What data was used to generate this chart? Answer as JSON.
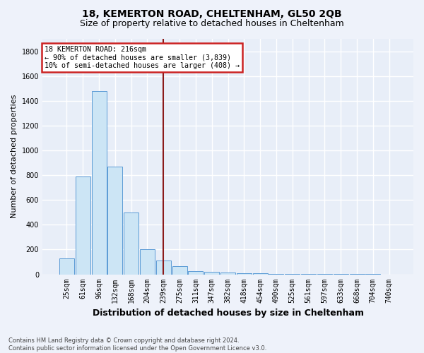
{
  "title": "18, KEMERTON ROAD, CHELTENHAM, GL50 2QB",
  "subtitle": "Size of property relative to detached houses in Cheltenham",
  "xlabel": "Distribution of detached houses by size in Cheltenham",
  "ylabel": "Number of detached properties",
  "bar_labels": [
    "25sqm",
    "61sqm",
    "96sqm",
    "132sqm",
    "168sqm",
    "204sqm",
    "239sqm",
    "275sqm",
    "311sqm",
    "347sqm",
    "382sqm",
    "418sqm",
    "454sqm",
    "490sqm",
    "525sqm",
    "561sqm",
    "597sqm",
    "633sqm",
    "668sqm",
    "704sqm",
    "740sqm"
  ],
  "bar_values": [
    130,
    790,
    1480,
    870,
    500,
    205,
    110,
    65,
    25,
    20,
    15,
    10,
    8,
    5,
    4,
    3,
    2,
    2,
    1,
    1,
    0
  ],
  "bar_color": "#cce5f5",
  "bar_edge_color": "#5b9bd5",
  "vline_x": 6.0,
  "vline_color": "#8b1a1a",
  "annotation_text": "18 KEMERTON ROAD: 216sqm\n← 90% of detached houses are smaller (3,839)\n10% of semi-detached houses are larger (408) →",
  "annotation_box_color": "#ffffff",
  "annotation_box_edge": "#cc2222",
  "footnote": "Contains HM Land Registry data © Crown copyright and database right 2024.\nContains public sector information licensed under the Open Government Licence v3.0.",
  "ylim": [
    0,
    1900
  ],
  "background_color": "#eef2fa",
  "plot_background": "#e8eef8",
  "grid_color": "#ffffff",
  "title_fontsize": 10,
  "subtitle_fontsize": 9,
  "xlabel_fontsize": 9,
  "ylabel_fontsize": 8,
  "tick_fontsize": 7,
  "footnote_fontsize": 6,
  "yticks": [
    0,
    200,
    400,
    600,
    800,
    1000,
    1200,
    1400,
    1600,
    1800
  ]
}
